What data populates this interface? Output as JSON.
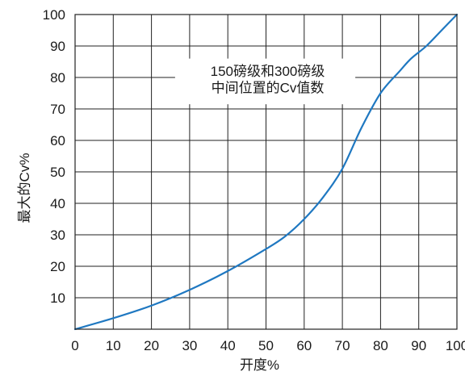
{
  "chart_data": {
    "type": "line",
    "xlabel": "开度%",
    "ylabel": "最大的Cv%",
    "xlim": [
      0,
      100
    ],
    "ylim": [
      0,
      100
    ],
    "grid": true,
    "x_ticks": [
      0,
      10,
      20,
      30,
      40,
      50,
      60,
      70,
      80,
      90,
      100
    ],
    "y_ticks": [
      10,
      20,
      30,
      40,
      50,
      60,
      70,
      80,
      90,
      100
    ],
    "x_tick_labels": [
      "0",
      "10",
      "20",
      "30",
      "40",
      "50",
      "60",
      "70",
      "80",
      "90",
      "100"
    ],
    "y_tick_labels": [
      "10",
      "20",
      "30",
      "40",
      "50",
      "60",
      "70",
      "80",
      "90",
      "100"
    ],
    "annotation_lines": [
      "150磅级和300磅级",
      "中间位置的Cv值数"
    ],
    "series": [
      {
        "color": "#1f78c1",
        "x": [
          0,
          10,
          20,
          30,
          40,
          50,
          55,
          60,
          65,
          70,
          75,
          80,
          85,
          88,
          92,
          96,
          100
        ],
        "y": [
          0,
          3.5,
          7.5,
          12.5,
          18.5,
          25.5,
          29.5,
          35,
          42,
          51,
          64,
          75,
          82,
          86,
          90,
          95,
          100
        ]
      }
    ]
  }
}
